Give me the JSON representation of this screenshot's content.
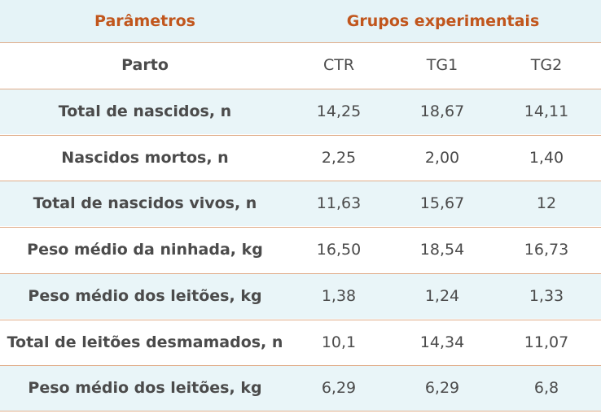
{
  "header": {
    "parameters": "Parâmetros",
    "groups": "Grupos experimentais"
  },
  "table": {
    "columns": [
      "Parto",
      "CTR",
      "TG1",
      "TG2"
    ],
    "rows": [
      [
        "Total de nascidos, n",
        "14,25",
        "18,67",
        "14,11"
      ],
      [
        "Nascidos mortos, n",
        "2,25",
        "2,00",
        "1,40"
      ],
      [
        "Total de nascidos vivos, n",
        "11,63",
        "15,67",
        "12"
      ],
      [
        "Peso médio da ninhada, kg",
        "16,50",
        "18,54",
        "16,73"
      ],
      [
        "Peso médio dos leitões, kg",
        "1,38",
        "1,24",
        "1,33"
      ],
      [
        "Total de leitões desmamados, n",
        "10,1",
        "14,34",
        "11,07"
      ],
      [
        "Peso médio dos leitões, kg",
        "6,29",
        "6,29",
        "6,8"
      ]
    ]
  }
}
